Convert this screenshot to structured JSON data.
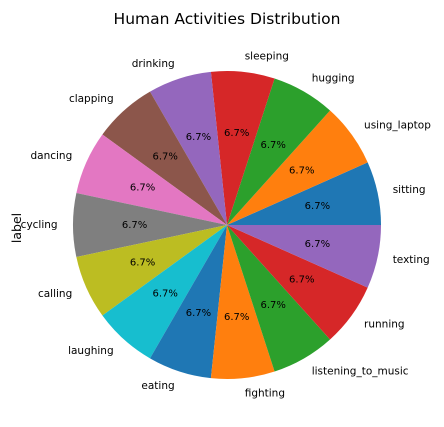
{
  "chart_data": {
    "type": "pie",
    "title": "Human Activities Distribution",
    "ylabel": "label",
    "categories": [
      "sitting",
      "using_laptop",
      "hugging",
      "sleeping",
      "drinking",
      "clapping",
      "dancing",
      "cycling",
      "calling",
      "laughing",
      "eating",
      "fighting",
      "listening_to_music",
      "running",
      "texting"
    ],
    "values": [
      6.7,
      6.7,
      6.7,
      6.7,
      6.7,
      6.7,
      6.7,
      6.7,
      6.7,
      6.7,
      6.7,
      6.7,
      6.7,
      6.7,
      6.7
    ],
    "value_labels": [
      "6.7%",
      "6.7%",
      "6.7%",
      "6.7%",
      "6.7%",
      "6.7%",
      "6.7%",
      "6.7%",
      "6.7%",
      "6.7%",
      "6.7%",
      "6.7%",
      "6.7%",
      "6.7%",
      "6.7%"
    ],
    "colors": [
      "#1f77b4",
      "#ff7f0e",
      "#2ca02c",
      "#d62728",
      "#9467bd",
      "#8c564b",
      "#e377c2",
      "#7f7f7f",
      "#bcbd22",
      "#17becf",
      "#1f77b4",
      "#ff7f0e",
      "#2ca02c",
      "#d62728",
      "#9467bd"
    ],
    "start_angle_deg": 0,
    "direction": "counterclockwise"
  }
}
